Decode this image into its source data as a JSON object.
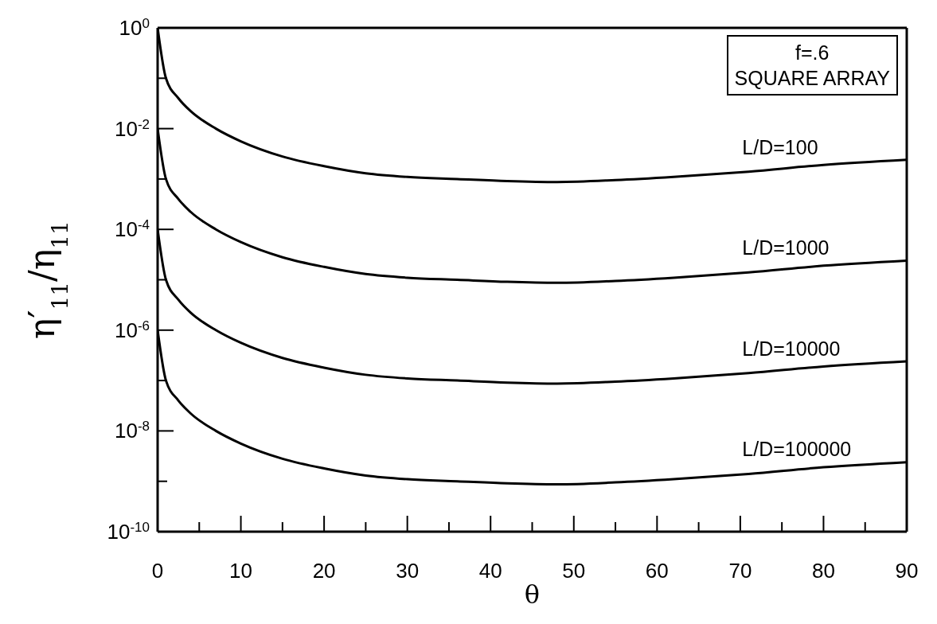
{
  "chart_data": {
    "type": "line",
    "xlabel": "θ",
    "ylabel": "η′$_{11}$/η$_{11}$",
    "log": "y",
    "marker": "none",
    "line_style": "solid",
    "x": [
      0,
      1,
      2.5,
      4,
      7,
      10,
      15,
      20,
      25,
      30,
      36,
      42,
      48,
      55,
      62,
      71,
      80,
      90
    ],
    "series": [
      {
        "name": "L/D=100",
        "color": "#000000",
        "values": [
          1,
          0.1,
          0.04,
          0.022,
          0.01,
          0.0056,
          0.0028,
          0.0018,
          0.0013,
          0.0011,
          0.001,
          0.00091,
          0.00087,
          0.00095,
          0.0011,
          0.0014,
          0.0019,
          0.0024
        ]
      },
      {
        "name": "L/D=1000",
        "color": "#000000",
        "values": [
          0.01,
          0.001,
          0.0004,
          0.00022,
          0.0001,
          5.6e-05,
          2.8e-05,
          1.8e-05,
          1.3e-05,
          1.1e-05,
          1e-05,
          9.1e-06,
          8.7e-06,
          9.5e-06,
          1.1e-05,
          1.4e-05,
          1.9e-05,
          2.4e-05
        ]
      },
      {
        "name": "L/D=10000",
        "color": "#000000",
        "values": [
          0.0001,
          1e-05,
          4e-06,
          2.2e-06,
          1e-06,
          5.6e-07,
          2.8e-07,
          1.8e-07,
          1.3e-07,
          1.1e-07,
          1e-07,
          9.1e-08,
          8.7e-08,
          9.5e-08,
          1.1e-07,
          1.4e-07,
          1.9e-07,
          2.4e-07
        ]
      },
      {
        "name": "L/D=100000",
        "color": "#000000",
        "values": [
          1e-06,
          1e-07,
          4e-08,
          2.2e-08,
          1e-08,
          5.6e-09,
          2.8e-09,
          1.8e-09,
          1.3e-09,
          1.1e-09,
          1e-09,
          9.1e-10,
          8.7e-10,
          9.5e-10,
          1.1e-09,
          1.4e-09,
          1.9e-09,
          2.4e-09
        ]
      }
    ],
    "xlim": [
      0,
      90
    ],
    "xticks": [
      0,
      {
        "value": 5,
        "label": null
      },
      10,
      {
        "value": 15,
        "label": null
      },
      20,
      {
        "value": 25,
        "label": null
      },
      30,
      {
        "value": 35,
        "label": null
      },
      40,
      {
        "value": 45,
        "label": null
      },
      50,
      {
        "value": 55,
        "label": null
      },
      60,
      {
        "value": 65,
        "label": null
      },
      70,
      {
        "value": 75,
        "label": null
      },
      80,
      {
        "value": 85,
        "label": null
      },
      90
    ],
    "ylim": [
      1e-10,
      1
    ],
    "yticks": [
      {
        "value": 1,
        "label": "10$^{0}$"
      },
      {
        "value": 0.1,
        "label": null
      },
      {
        "value": 0.01,
        "label": "10$^{-2}$"
      },
      {
        "value": 0.001,
        "label": null
      },
      {
        "value": 0.0001,
        "label": "10$^{-4}$"
      },
      {
        "value": 1e-05,
        "label": null
      },
      {
        "value": 1e-06,
        "label": "10$^{-6}$"
      },
      {
        "value": 1e-07,
        "label": null
      },
      {
        "value": 1e-08,
        "label": "10$^{-8}$"
      },
      {
        "value": 1e-09,
        "label": null
      },
      {
        "value": 1e-10,
        "label": "10$^{-10}$"
      }
    ],
    "annotations": [
      "f=.6",
      "SQUARE ARRAY"
    ]
  }
}
